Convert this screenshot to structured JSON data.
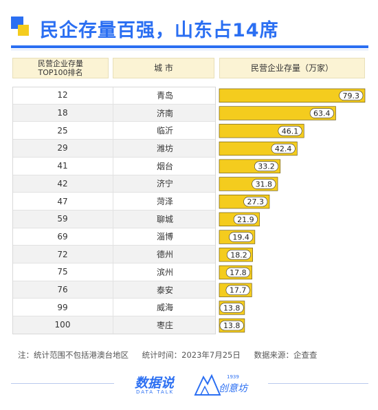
{
  "title": "民企存量百强，山东占14席",
  "header": {
    "rank_line1": "民营企业存量",
    "rank_line2": "TOP100排名",
    "city": "城 市",
    "value": "民营企业存量（万家）"
  },
  "chart_data": {
    "type": "bar",
    "orientation": "horizontal",
    "categories": [
      "青岛",
      "济南",
      "临沂",
      "潍坊",
      "烟台",
      "济宁",
      "菏泽",
      "聊城",
      "淄博",
      "德州",
      "滨州",
      "泰安",
      "威海",
      "枣庄"
    ],
    "ranks": [
      "12",
      "18",
      "25",
      "29",
      "41",
      "42",
      "47",
      "59",
      "69",
      "72",
      "75",
      "76",
      "99",
      "100"
    ],
    "values": [
      79.3,
      63.4,
      46.1,
      42.4,
      33.2,
      31.8,
      27.3,
      21.9,
      19.4,
      18.2,
      17.8,
      17.7,
      13.8,
      13.8
    ],
    "value_labels": [
      "79.3",
      "63.4",
      "46.1",
      "42.4",
      "33.2",
      "31.8",
      "27.3",
      "21.9",
      "19.4",
      "18.2",
      "17.8",
      "17.7",
      "13.8",
      "13.8"
    ],
    "xlim": [
      0,
      79.3
    ],
    "bar_color": "#f4cc1e",
    "label_bg": "#ffffff",
    "grid": false
  },
  "footer": {
    "note": "注：统计范围不包括港澳台地区",
    "time": "统计时间：2023年7月25日",
    "source": "数据来源：企查查"
  },
  "brand": {
    "name1": "数据说",
    "name1_en": "DATA TALK",
    "name2": "创意坊",
    "name2_year": "1939"
  },
  "colors": {
    "accent": "#2b6ff2",
    "yellow": "#f4cc1e"
  }
}
